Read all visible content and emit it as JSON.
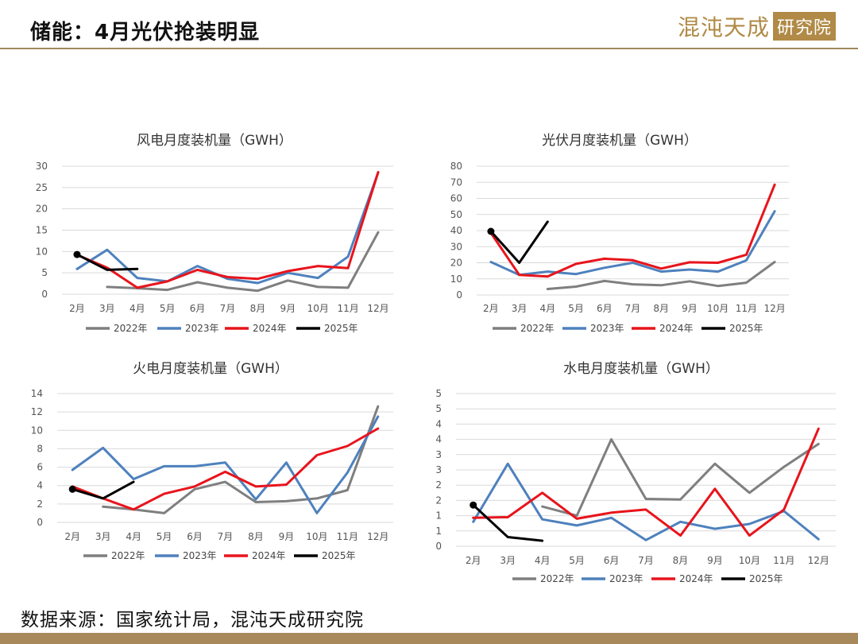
{
  "page": {
    "title": "储能：4月光伏抢装明显",
    "brand_left": "混沌天成",
    "brand_right": "研究院",
    "source": "数据来源：国家统计局，混沌天成研究院",
    "colors": {
      "header_rule": "#a08860",
      "footer_bar": "#a8895c",
      "brand": "#b08a46"
    }
  },
  "legend": [
    {
      "name": "2022年",
      "color": "#7f7f7f"
    },
    {
      "name": "2023年",
      "color": "#4e81bd"
    },
    {
      "name": "2024年",
      "color": "#e8141c"
    },
    {
      "name": "2025年",
      "color": "#000000"
    }
  ],
  "chart_data": [
    {
      "type": "line",
      "title": "风电月度装机量（GWH）",
      "x": [
        "2月",
        "3月",
        "4月",
        "5月",
        "6月",
        "7月",
        "8月",
        "9月",
        "10月",
        "11月",
        "12月"
      ],
      "ylim": [
        0,
        30
      ],
      "yticks": [
        0,
        5,
        10,
        15,
        20,
        25,
        30
      ],
      "grid": true,
      "legend_position": "bottom",
      "series": [
        {
          "name": "2022年",
          "values": [
            null,
            1.7,
            1.4,
            1.0,
            2.8,
            1.5,
            0.8,
            3.2,
            1.7,
            1.5,
            14.5
          ]
        },
        {
          "name": "2023年",
          "values": [
            5.9,
            10.4,
            3.8,
            3.0,
            6.6,
            3.6,
            2.6,
            5.0,
            3.8,
            8.8,
            28.5
          ]
        },
        {
          "name": "2024年",
          "values": [
            9.2,
            6.2,
            1.5,
            3.0,
            5.7,
            4.0,
            3.6,
            5.4,
            6.6,
            6.1,
            28.6
          ]
        },
        {
          "name": "2025年",
          "values": [
            9.3,
            5.7,
            5.9,
            null,
            null,
            null,
            null,
            null,
            null,
            null,
            null
          ],
          "marker_first": true
        }
      ]
    },
    {
      "type": "line",
      "title": "光伏月度装机量（GWH）",
      "x": [
        "2月",
        "3月",
        "4月",
        "5月",
        "6月",
        "7月",
        "8月",
        "9月",
        "10月",
        "11月",
        "12月"
      ],
      "ylim": [
        0,
        80
      ],
      "yticks": [
        0,
        10,
        20,
        30,
        40,
        50,
        60,
        70,
        80
      ],
      "grid": true,
      "legend_position": "bottom",
      "series": [
        {
          "name": "2022年",
          "values": [
            null,
            null,
            3.7,
            5.2,
            8.7,
            6.6,
            6.0,
            8.5,
            5.6,
            7.6,
            20.5
          ]
        },
        {
          "name": "2023年",
          "values": [
            20.5,
            12.5,
            14.5,
            13.0,
            16.9,
            20.0,
            14.5,
            15.8,
            14.5,
            21.5,
            52.0
          ]
        },
        {
          "name": "2024年",
          "values": [
            38.5,
            12.5,
            11.5,
            19.3,
            22.5,
            21.6,
            16.4,
            20.3,
            20.0,
            25.0,
            68.5
          ]
        },
        {
          "name": "2025年",
          "values": [
            39.5,
            20.0,
            45.5,
            null,
            null,
            null,
            null,
            null,
            null,
            null,
            null
          ],
          "marker_first": true
        }
      ]
    },
    {
      "type": "line",
      "title": "火电月度装机量（GWH）",
      "x": [
        "2月",
        "3月",
        "4月",
        "5月",
        "6月",
        "7月",
        "8月",
        "9月",
        "10月",
        "11月",
        "12月"
      ],
      "ylim": [
        0,
        14
      ],
      "yticks": [
        0,
        2,
        4,
        6,
        8,
        10,
        12,
        14
      ],
      "grid": true,
      "legend_position": "bottom",
      "series": [
        {
          "name": "2022年",
          "values": [
            null,
            1.7,
            1.4,
            1.0,
            3.6,
            4.4,
            2.2,
            2.3,
            2.6,
            3.5,
            12.6
          ]
        },
        {
          "name": "2023年",
          "values": [
            5.7,
            8.1,
            4.7,
            6.1,
            6.1,
            6.5,
            2.5,
            6.5,
            1.0,
            5.4,
            11.5
          ]
        },
        {
          "name": "2024年",
          "values": [
            3.9,
            2.6,
            1.4,
            3.1,
            3.9,
            5.5,
            3.9,
            4.1,
            7.3,
            8.3,
            10.2
          ]
        },
        {
          "name": "2025年",
          "values": [
            3.6,
            2.6,
            4.4,
            null,
            null,
            null,
            null,
            null,
            null,
            null,
            null
          ],
          "marker_first": true
        }
      ]
    },
    {
      "type": "line",
      "title": "水电月度装机量（GWH）",
      "x": [
        "2月",
        "3月",
        "4月",
        "5月",
        "6月",
        "7月",
        "8月",
        "9月",
        "10月",
        "11月",
        "12月"
      ],
      "ylim": [
        0,
        5
      ],
      "ytick_values": [
        0,
        0.5,
        1,
        1.5,
        2,
        2.5,
        3,
        3.5,
        4,
        4.5,
        5
      ],
      "ytick_labels": [
        "0",
        "1",
        "1",
        "2",
        "2",
        "3",
        "3",
        "4",
        "4",
        "5",
        "5"
      ],
      "grid": true,
      "legend_position": "bottom",
      "series": [
        {
          "name": "2022年",
          "values": [
            null,
            null,
            1.3,
            1.0,
            3.5,
            1.55,
            1.53,
            2.7,
            1.75,
            2.6,
            3.35
          ]
        },
        {
          "name": "2023年",
          "values": [
            0.8,
            2.7,
            0.88,
            0.68,
            0.93,
            0.2,
            0.8,
            0.57,
            0.73,
            1.15,
            0.23
          ]
        },
        {
          "name": "2024年",
          "values": [
            0.93,
            0.95,
            1.75,
            0.9,
            1.1,
            1.2,
            0.35,
            1.88,
            0.35,
            1.2,
            3.85
          ]
        },
        {
          "name": "2025年",
          "values": [
            1.35,
            0.3,
            0.18,
            null,
            null,
            null,
            null,
            null,
            null,
            null,
            null
          ],
          "marker_first": true
        }
      ]
    }
  ]
}
